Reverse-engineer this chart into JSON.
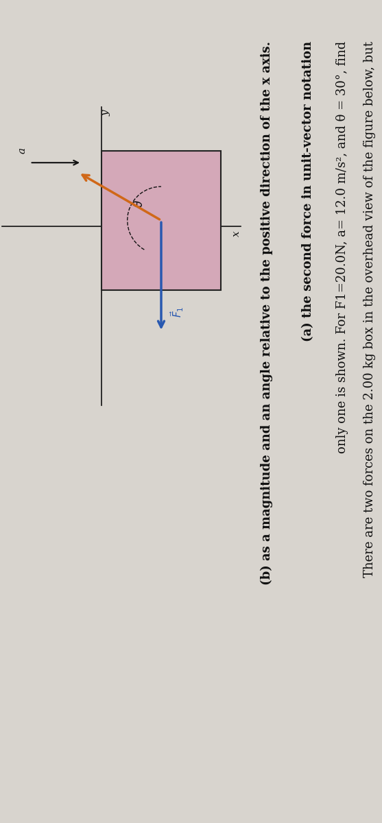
{
  "background_color": "#d8d4ce",
  "text_color": "#111111",
  "title_line1": "There are two forces on the 2.00 kg box in the overhead view of the figure below, but",
  "title_line2": "only one is shown. For F1=20.0N, a= 12.0 m/s², and θ = 30°, find",
  "part_a": "(a) the second force in unit-vector notation",
  "part_b": "(b) as a magnitude and an angle relative to the positive direction of the x axis.",
  "box_facecolor": "#d4a8b8",
  "box_edgecolor": "#222222",
  "f1_color": "#d06818",
  "f2_color": "#2858b0",
  "axis_color": "#111111",
  "theta_deg": 30,
  "text_rotation": -90,
  "font_size_main": 13,
  "font_size_bold": 13
}
